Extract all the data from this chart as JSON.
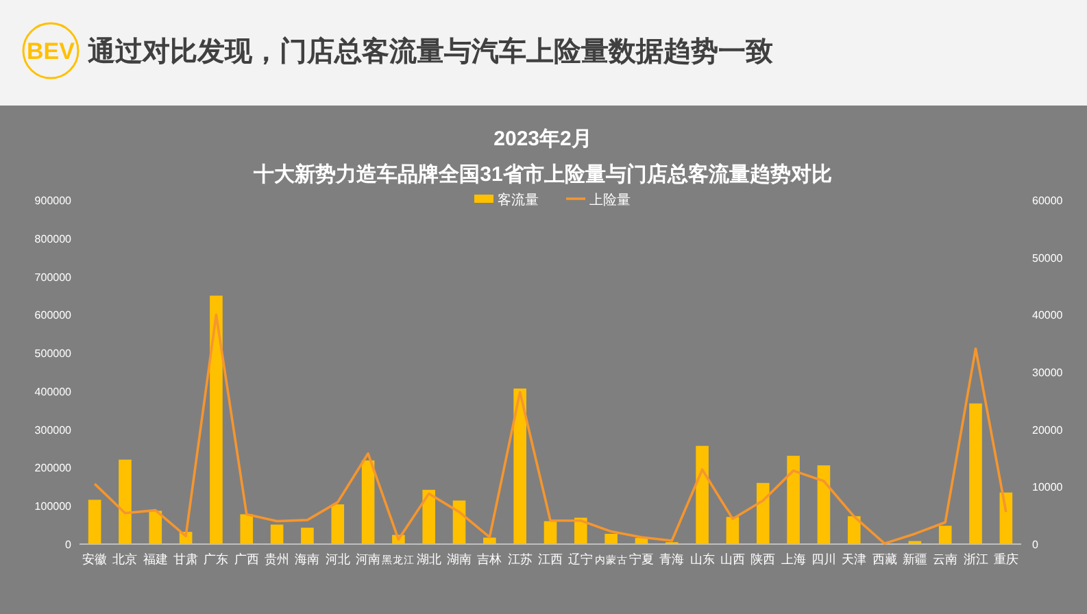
{
  "chart_data": {
    "type": "bar",
    "title": "十大新势力造车品牌全国31省市上险量与门店总客流量趋势对比",
    "subtitle": "2023年2月",
    "annotations": [
      "BEV",
      "通过对比发现，门店总客流量与汽车上险量数据趋势一致"
    ],
    "categories": [
      "安徽",
      "北京",
      "福建",
      "甘肃",
      "广东",
      "广西",
      "贵州",
      "海南",
      "河北",
      "河南",
      "黑龙江",
      "湖北",
      "湖南",
      "吉林",
      "江苏",
      "江西",
      "辽宁",
      "内蒙古",
      "宁夏",
      "青海",
      "山东",
      "山西",
      "陕西",
      "上海",
      "四川",
      "天津",
      "西藏",
      "新疆",
      "云南",
      "浙江",
      "重庆"
    ],
    "series": [
      {
        "name": "客流量",
        "color": "#ffc000",
        "values": [
          116000,
          221000,
          87000,
          32000,
          650000,
          78000,
          51000,
          43000,
          104000,
          219000,
          24000,
          142000,
          114000,
          17000,
          407000,
          60000,
          69000,
          27000,
          16000,
          5000,
          257000,
          71000,
          160000,
          231000,
          206000,
          73000,
          0,
          8000,
          48000,
          368000,
          135000
        ]
      },
      {
        "name": "上险量",
        "type": "line",
        "axis": "y2",
        "color": "#f5962e",
        "values": [
          10500,
          5400,
          5900,
          1400,
          40000,
          5200,
          4000,
          4200,
          7300,
          15800,
          800,
          8800,
          5600,
          1200,
          26500,
          4100,
          4100,
          2200,
          1200,
          600,
          13000,
          4400,
          7600,
          12800,
          11000,
          4800,
          100,
          1800,
          3800,
          34100,
          5600
        ]
      }
    ],
    "ylim": [
      0,
      900000
    ],
    "yticks": [
      0,
      100000,
      200000,
      300000,
      400000,
      500000,
      600000,
      700000,
      800000,
      900000
    ],
    "y2lim": [
      0,
      60000
    ],
    "y2ticks": [
      0,
      10000,
      20000,
      30000,
      40000,
      50000,
      60000
    ],
    "legend": "top"
  }
}
